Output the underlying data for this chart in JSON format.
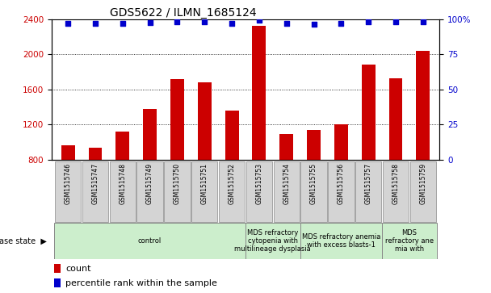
{
  "title": "GDS5622 / ILMN_1685124",
  "samples": [
    "GSM1515746",
    "GSM1515747",
    "GSM1515748",
    "GSM1515749",
    "GSM1515750",
    "GSM1515751",
    "GSM1515752",
    "GSM1515753",
    "GSM1515754",
    "GSM1515755",
    "GSM1515756",
    "GSM1515757",
    "GSM1515758",
    "GSM1515759"
  ],
  "counts": [
    960,
    940,
    1120,
    1380,
    1720,
    1680,
    1360,
    2320,
    1090,
    1140,
    1200,
    1880,
    1730,
    2040
  ],
  "percentile_ranks": [
    97,
    97,
    97,
    97.5,
    98,
    98,
    97,
    99,
    97,
    96.5,
    97,
    98,
    98,
    98
  ],
  "ylim_left": [
    800,
    2400
  ],
  "ylim_right": [
    0,
    100
  ],
  "yticks_left": [
    800,
    1200,
    1600,
    2000,
    2400
  ],
  "yticks_right": [
    0,
    25,
    50,
    75,
    100
  ],
  "bar_color": "#cc0000",
  "dot_color": "#0000cc",
  "disease_groups": [
    {
      "label": "control",
      "start": 0,
      "end": 7
    },
    {
      "label": "MDS refractory\ncytopenia with\nmultilineage dysplasia",
      "start": 7,
      "end": 9
    },
    {
      "label": "MDS refractory anemia\nwith excess blasts-1",
      "start": 9,
      "end": 12
    },
    {
      "label": "MDS\nrefractory ane\nmia with",
      "start": 12,
      "end": 14
    }
  ],
  "disease_state_label": "disease state",
  "legend_count_label": "count",
  "legend_pct_label": "percentile rank within the sample",
  "sample_bg_color": "#d0d0d0",
  "disease_bg_color": "#cceecc",
  "bar_width": 0.5,
  "dot_size": 20,
  "title_fontsize": 10,
  "axis_fontsize": 7.5,
  "sample_fontsize": 5.5,
  "disease_fontsize": 6,
  "legend_fontsize": 8
}
